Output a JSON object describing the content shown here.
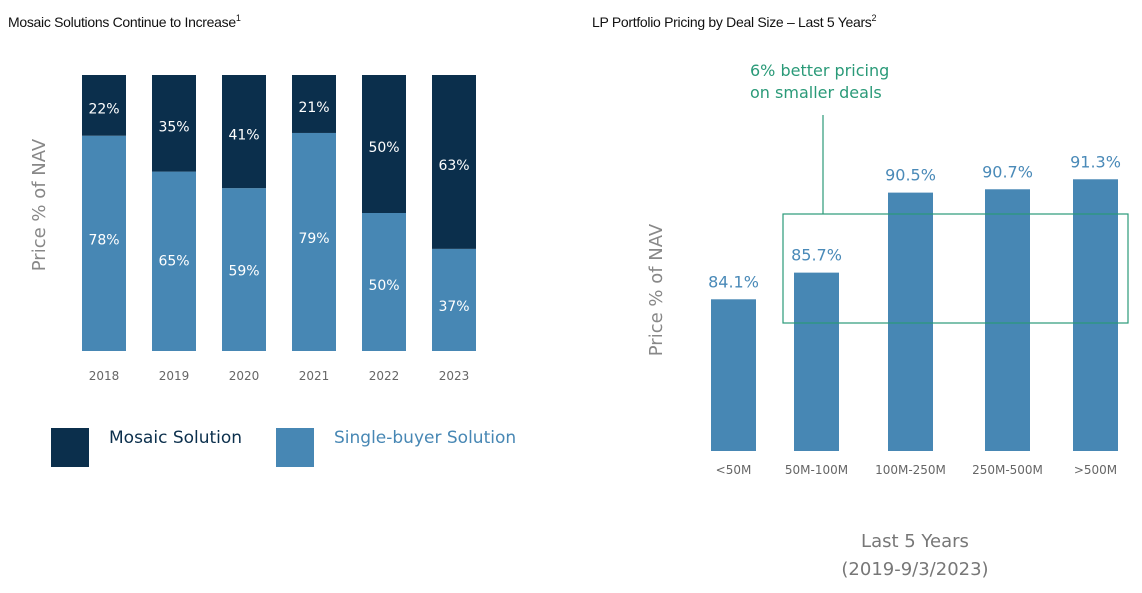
{
  "colors": {
    "mosaic": "#0b2f4c",
    "single": "#4787b4",
    "annotation": "#2a9a78",
    "value_label": "#4a8ab8"
  },
  "chart_data": [
    {
      "type": "bar",
      "stacked": true,
      "title": "Mosaic Solutions Continue to Increase",
      "title_superscript": "1",
      "ylabel": "Price % of NAV",
      "categories": [
        "2018",
        "2019",
        "2020",
        "2021",
        "2022",
        "2023"
      ],
      "series": [
        {
          "name": "Single-buyer Solution",
          "values": [
            78,
            65,
            59,
            79,
            50,
            37
          ],
          "labels": [
            "78%",
            "65%",
            "59%",
            "79%",
            "50%",
            "37%"
          ]
        },
        {
          "name": "Mosaic Solution",
          "values": [
            22,
            35,
            41,
            21,
            50,
            63
          ],
          "labels": [
            "22%",
            "35%",
            "41%",
            "21%",
            "50%",
            "63%"
          ]
        }
      ],
      "ylim": [
        0,
        100
      ],
      "legend": "bottom"
    },
    {
      "type": "bar",
      "title": "LP Portfolio Pricing by Deal Size – Last 5 Years",
      "title_superscript": "2",
      "ylabel": "Price % of NAV",
      "xlabel_lines": [
        "Last 5 Years",
        "(2019-9/3/2023)"
      ],
      "categories": [
        "<50M",
        "50M-100M",
        "100M-250M",
        "250M-500M",
        ">500M"
      ],
      "values": [
        84.1,
        85.7,
        90.5,
        90.7,
        91.3
      ],
      "labels": [
        "84.1%",
        "85.7%",
        "90.5%",
        "90.7%",
        "91.3%"
      ],
      "ylim": [
        75,
        92
      ],
      "annotation": {
        "lines": [
          "6% better pricing",
          "on smaller deals"
        ],
        "highlighted_categories": [
          "50M-100M",
          "100M-250M",
          "250M-500M",
          ">500M"
        ]
      }
    }
  ]
}
